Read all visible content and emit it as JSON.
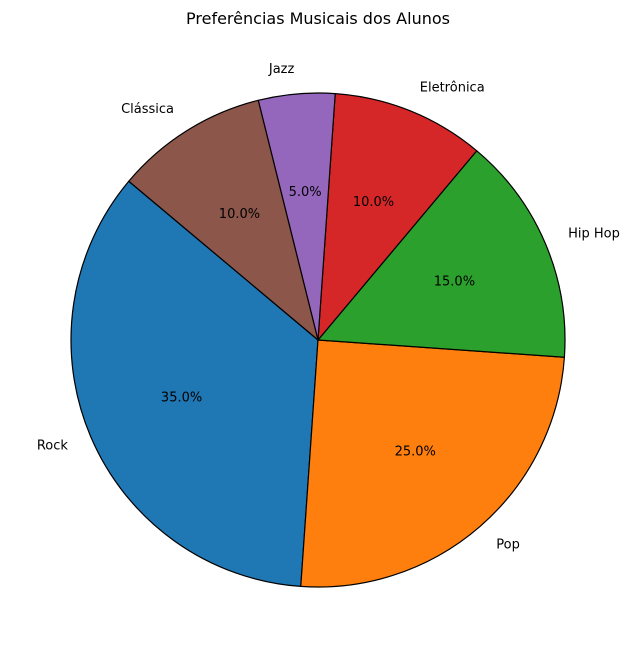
{
  "chart_data": {
    "type": "pie",
    "title": "Preferências Musicais dos Alunos",
    "slices": [
      {
        "label": "Rock",
        "value": 35,
        "percent_label": "35.0%",
        "color": "#1f77b4"
      },
      {
        "label": "Pop",
        "value": 25,
        "percent_label": "25.0%",
        "color": "#ff7f0e"
      },
      {
        "label": "Hip Hop",
        "value": 15,
        "percent_label": "15.0%",
        "color": "#2ca02c"
      },
      {
        "label": "Eletrônica",
        "value": 10,
        "percent_label": "10.0%",
        "color": "#d62728"
      },
      {
        "label": "Jazz",
        "value": 5,
        "percent_label": "5.0%",
        "color": "#9467bd"
      },
      {
        "label": "Clássica",
        "value": 10,
        "percent_label": "10.0%",
        "color": "#8c564b"
      }
    ],
    "start_angle_deg": 140,
    "direction": "counterclockwise",
    "edge_color": "#000000"
  }
}
